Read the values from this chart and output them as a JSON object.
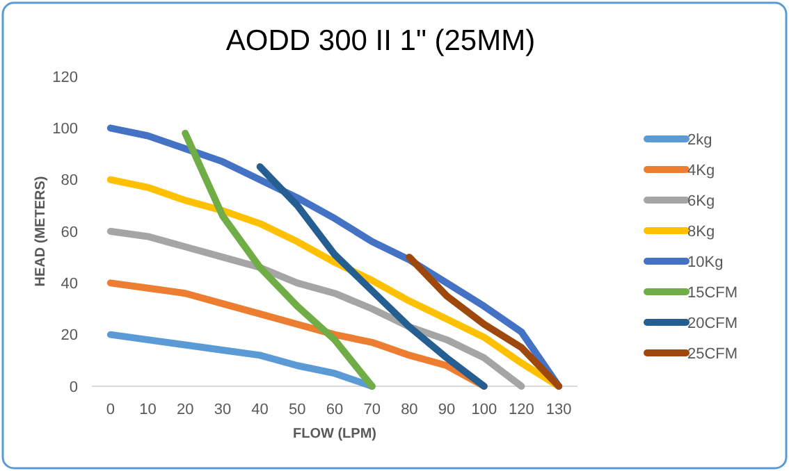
{
  "chart_data": {
    "type": "line",
    "title": "AODD 300 II 1\" (25MM)",
    "xlabel": "FLOW (LPM)",
    "ylabel": "HEAD (METERS)",
    "categories": [
      "0",
      "10",
      "20",
      "30",
      "40",
      "50",
      "60",
      "70",
      "80",
      "90",
      "100",
      "120",
      "130"
    ],
    "ylim": [
      0,
      120
    ],
    "yticks": [
      0,
      20,
      40,
      60,
      80,
      100,
      120
    ],
    "grid": false,
    "legend": "right",
    "marker": "none",
    "line_style": "solid",
    "series": [
      {
        "name": "2kg",
        "color": "#5b9bd5",
        "values": [
          20,
          18,
          16,
          14,
          12,
          8,
          5,
          0,
          null,
          null,
          null,
          null,
          null
        ]
      },
      {
        "name": "4Kg",
        "color": "#ed7d31",
        "values": [
          40,
          38,
          36,
          32,
          28,
          24,
          20,
          17,
          12,
          8,
          0,
          null,
          null
        ]
      },
      {
        "name": "6Kg",
        "color": "#a5a5a5",
        "values": [
          60,
          58,
          54,
          50,
          46,
          40,
          36,
          30,
          23,
          18,
          11,
          0,
          null
        ]
      },
      {
        "name": "8Kg",
        "color": "#ffc000",
        "values": [
          80,
          77,
          72,
          68,
          63,
          56,
          48,
          41,
          33,
          26,
          19,
          9,
          0
        ]
      },
      {
        "name": "10Kg",
        "color": "#4472c4",
        "values": [
          100,
          97,
          92,
          87,
          80,
          73,
          65,
          56,
          49,
          40,
          31,
          21,
          0
        ]
      },
      {
        "name": "15CFM",
        "color": "#70ad47",
        "values": [
          null,
          null,
          98,
          66,
          46,
          31,
          18,
          0,
          null,
          null,
          null,
          null,
          null
        ]
      },
      {
        "name": "20CFM",
        "color": "#255e91",
        "values": [
          null,
          null,
          null,
          null,
          85,
          70,
          51,
          37,
          23,
          11,
          0,
          null,
          null
        ]
      },
      {
        "name": "25CFM",
        "color": "#9e480e",
        "values": [
          null,
          null,
          null,
          null,
          null,
          null,
          null,
          null,
          50,
          35,
          24,
          15,
          0
        ]
      }
    ]
  }
}
